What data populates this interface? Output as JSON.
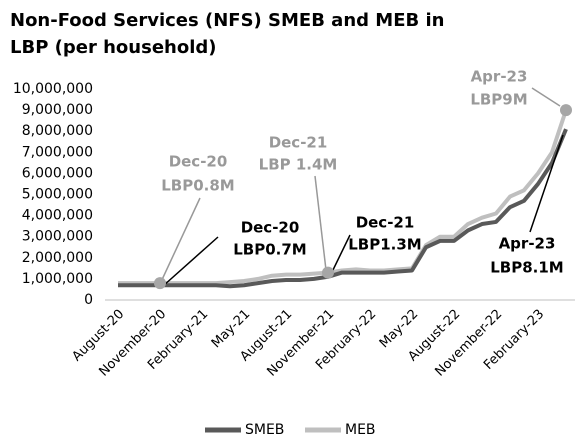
{
  "chart_data": {
    "type": "line",
    "title": [
      "Non-Food Services (NFS) SMEB and MEB in",
      "LBP (per household)"
    ],
    "categories": [
      "August-20",
      null,
      null,
      "November-20",
      null,
      null,
      "February-21",
      null,
      null,
      "May-21",
      null,
      null,
      "August-21",
      null,
      null,
      "November-21",
      null,
      null,
      "February-22",
      null,
      null,
      "May-22",
      null,
      null,
      "August-22",
      null,
      null,
      "November-22",
      null,
      null,
      "February-23",
      null,
      null
    ],
    "series": [
      {
        "name": "SMEB",
        "color": "#595959",
        "values": [
          700000,
          700000,
          700000,
          700000,
          700000,
          700000,
          700000,
          700000,
          650000,
          700000,
          800000,
          900000,
          950000,
          950000,
          1000000,
          1100000,
          1300000,
          1300000,
          1300000,
          1300000,
          1350000,
          1400000,
          2500000,
          2800000,
          2800000,
          3300000,
          3600000,
          3700000,
          4400000,
          4700000,
          5500000,
          6500000,
          8100000
        ]
      },
      {
        "name": "MEB",
        "color": "#bfbfbf",
        "values": [
          800000,
          800000,
          800000,
          800000,
          800000,
          800000,
          800000,
          800000,
          850000,
          900000,
          1000000,
          1150000,
          1200000,
          1200000,
          1250000,
          1300000,
          1400000,
          1450000,
          1400000,
          1400000,
          1450000,
          1500000,
          2600000,
          3000000,
          3000000,
          3600000,
          3900000,
          4100000,
          4900000,
          5200000,
          6000000,
          7000000,
          9000000
        ]
      }
    ],
    "ylim": [
      0,
      10000000
    ],
    "yticks": [
      0,
      {
        "value": 1000000,
        "label": "1,000,000"
      },
      {
        "value": 2000000,
        "label": "2,000,000"
      },
      {
        "value": 3000000,
        "label": "3,000,000"
      },
      {
        "value": 4000000,
        "label": "4,000,000"
      },
      {
        "value": 5000000,
        "label": "5,000,000"
      },
      {
        "value": 6000000,
        "label": "6,000,000"
      },
      {
        "value": 7000000,
        "label": "7,000,000"
      },
      {
        "value": 8000000,
        "label": "8,000,000"
      },
      {
        "value": 9000000,
        "label": "9,000,000"
      },
      {
        "value": 10000000,
        "label": "10,000,000"
      }
    ],
    "grid": false,
    "legend": "bottom",
    "annotations": [
      {
        "lines": [
          "Dec-20",
          "LBP0.8M"
        ],
        "color": "#999999"
      },
      {
        "lines": [
          "Dec-20",
          "LBP0.7M"
        ],
        "color": "#000000"
      },
      {
        "lines": [
          "Dec-21",
          "LBP 1.4M"
        ],
        "color": "#999999"
      },
      {
        "lines": [
          "Dec-21",
          "LBP1.3M"
        ],
        "color": "#000000"
      },
      {
        "lines": [
          "Apr-23",
          "LBP9M"
        ],
        "color": "#999999"
      },
      {
        "lines": [
          "Apr-23",
          "LBP8.1M"
        ],
        "color": "#000000"
      }
    ]
  }
}
